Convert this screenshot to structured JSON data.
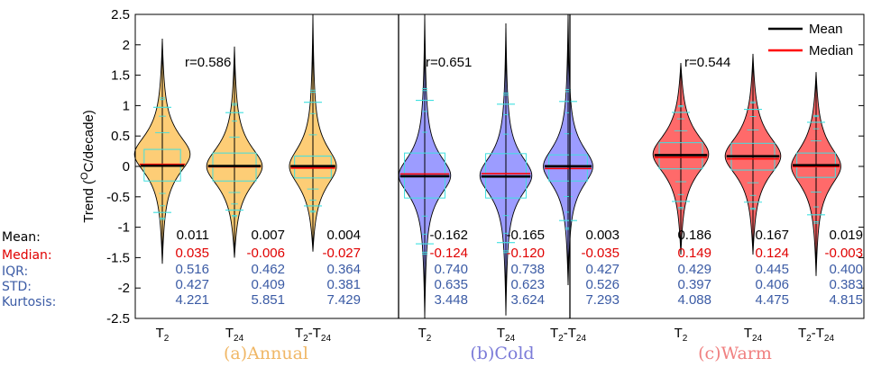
{
  "chart_data": {
    "type": "violin",
    "ylabel": "Trend (°C/decade)",
    "ylim": [
      -2.5,
      2.5
    ],
    "yticks": [
      -2.5,
      -2,
      -1.5,
      -1,
      -0.5,
      0,
      0.5,
      1,
      1.5,
      2,
      2.5
    ],
    "ytick_labels": [
      "-2.5",
      "-2",
      "-1.5",
      "-1",
      "-0.5",
      "0",
      "0.5",
      "1",
      "1.5",
      "2",
      "2.5"
    ],
    "legend": {
      "position": "top-right",
      "entries": [
        {
          "label": "Mean",
          "color": "#000000"
        },
        {
          "label": "Median",
          "color": "#ff0000"
        }
      ]
    },
    "row_labels": {
      "mean": "Mean:",
      "median": "Median:",
      "iqr": "IQR:",
      "std": "STD:",
      "kurtosis": "Kurtosis:"
    },
    "row_colors": {
      "mean": "#000000",
      "median": "#e00000",
      "stats": "#3b5ba5"
    },
    "groups": [
      {
        "title": "(a)Annual",
        "title_color": "#f0b766",
        "fill": "#fdcd76",
        "correlation": "r=0.586",
        "violins": [
          {
            "label_main": "T",
            "label_sub": "2",
            "min": -1.6,
            "max": 2.1,
            "q1": -0.24,
            "q3": 0.28,
            "mean": 0.011,
            "median": 0.035,
            "peak": 0.2,
            "width": 0.45,
            "stats": {
              "mean": "0.011",
              "median": "0.035",
              "iqr": "0.516",
              "std": "0.427",
              "kurtosis": "4.221"
            }
          },
          {
            "label_main": "T",
            "label_sub": "24",
            "min": -1.5,
            "max": 1.97,
            "q1": -0.24,
            "q3": 0.22,
            "mean": 0.007,
            "median": -0.006,
            "peak": 0.0,
            "width": 0.45,
            "stats": {
              "mean": "0.007",
              "median": "-0.006",
              "iqr": "0.462",
              "std": "0.409",
              "kurtosis": "5.851"
            }
          },
          {
            "label_main": "T",
            "label_sub": "2",
            "label_mid": "-T",
            "label_sub2": "24",
            "min": -1.4,
            "max": 2.5,
            "q1": -0.19,
            "q3": 0.17,
            "mean": 0.004,
            "median": -0.027,
            "peak": 0.0,
            "width": 0.38,
            "stats": {
              "mean": "0.004",
              "median": "-0.027",
              "iqr": "0.364",
              "std": "0.381",
              "kurtosis": "7.429"
            }
          }
        ]
      },
      {
        "title": "(b)Cold",
        "title_color": "#7b7bd8",
        "fill": "#9c9cff",
        "correlation": "r=0.651",
        "violins": [
          {
            "label_main": "T",
            "label_sub": "2",
            "min": -2.5,
            "max": 2.5,
            "q1": -0.52,
            "q3": 0.22,
            "mean": -0.162,
            "median": -0.124,
            "peak": -0.15,
            "width": 0.42,
            "stats": {
              "mean": "-0.162",
              "median": "-0.124",
              "iqr": "0.740",
              "std": "0.635",
              "kurtosis": "3.448"
            }
          },
          {
            "label_main": "T",
            "label_sub": "24",
            "min": -2.45,
            "max": 2.35,
            "q1": -0.52,
            "q3": 0.21,
            "mean": -0.165,
            "median": -0.12,
            "peak": -0.15,
            "width": 0.42,
            "stats": {
              "mean": "-0.165",
              "median": "-0.120",
              "iqr": "0.738",
              "std": "0.623",
              "kurtosis": "3.624"
            }
          },
          {
            "label_main": "T",
            "label_sub": "2",
            "label_mid": "-T",
            "label_sub2": "24",
            "min": -1.95,
            "max": 2.5,
            "q1": -0.24,
            "q3": 0.19,
            "mean": 0.003,
            "median": -0.035,
            "peak": 0.0,
            "width": 0.4,
            "stats": {
              "mean": "0.003",
              "median": "-0.035",
              "iqr": "0.427",
              "std": "0.526",
              "kurtosis": "7.293"
            }
          }
        ]
      },
      {
        "title": "(c)Warm",
        "title_color": "#f08080",
        "fill": "#ff6a6a",
        "correlation": "r=0.544",
        "violins": [
          {
            "label_main": "T",
            "label_sub": "2",
            "min": -1.45,
            "max": 1.7,
            "q1": -0.04,
            "q3": 0.39,
            "mean": 0.186,
            "median": 0.149,
            "peak": 0.2,
            "width": 0.45,
            "stats": {
              "mean": "0.186",
              "median": "0.149",
              "iqr": "0.429",
              "std": "0.397",
              "kurtosis": "4.088"
            }
          },
          {
            "label_main": "T",
            "label_sub": "24",
            "min": -1.45,
            "max": 1.85,
            "q1": -0.06,
            "q3": 0.38,
            "mean": 0.167,
            "median": 0.124,
            "peak": 0.17,
            "width": 0.45,
            "stats": {
              "mean": "0.167",
              "median": "0.124",
              "iqr": "0.445",
              "std": "0.406",
              "kurtosis": "4.475"
            }
          },
          {
            "label_main": "T",
            "label_sub": "2",
            "label_mid": "-T",
            "label_sub2": "24",
            "min": -1.8,
            "max": 1.55,
            "q1": -0.18,
            "q3": 0.22,
            "mean": 0.019,
            "median": -0.003,
            "peak": 0.0,
            "width": 0.4,
            "stats": {
              "mean": "0.019",
              "median": "-0.003",
              "iqr": "0.400",
              "std": "0.383",
              "kurtosis": "4.815"
            }
          }
        ]
      }
    ]
  }
}
